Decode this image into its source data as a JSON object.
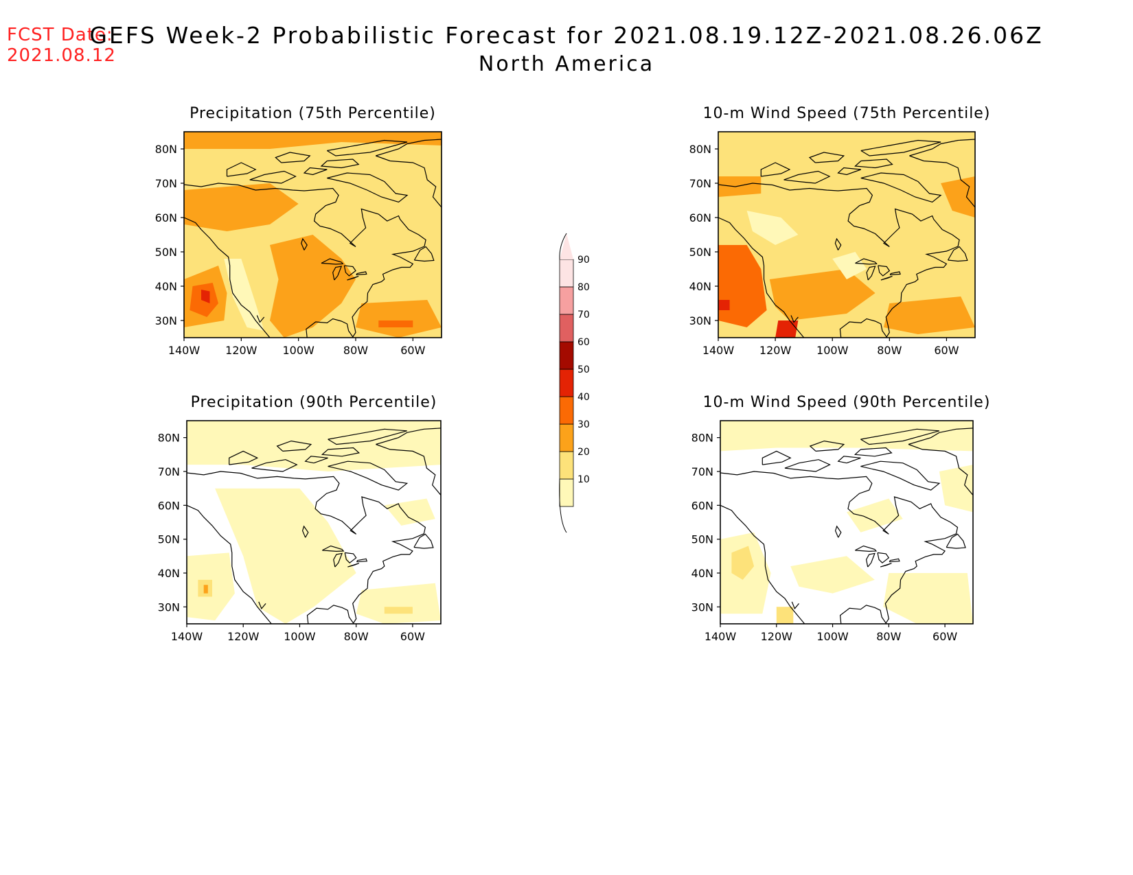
{
  "header": {
    "fcst_label": "FCST Date:",
    "fcst_date": "2021.08.12",
    "title": "GEFS Week-2 Probabilistic Forecast for 2021.08.19.12Z-2021.08.26.06Z",
    "subtitle": "North America"
  },
  "panels": [
    {
      "id": "precip75",
      "title": "Precipitation (75th Percentile)"
    },
    {
      "id": "wind75",
      "title": "10-m Wind Speed (75th Percentile)"
    },
    {
      "id": "precip90",
      "title": "Precipitation (90th Percentile)"
    },
    {
      "id": "wind90",
      "title": "10-m Wind Speed (90th Percentile)"
    }
  ],
  "axes": {
    "lat_ticks": [
      "80N",
      "70N",
      "60N",
      "50N",
      "40N",
      "30N"
    ],
    "lon_ticks": [
      "140W",
      "120W",
      "100W",
      "80W",
      "60W"
    ]
  },
  "colorbar": {
    "levels": [
      "10",
      "20",
      "30",
      "40",
      "50",
      "60",
      "70",
      "80",
      "90"
    ],
    "colors": [
      "#fff8b8",
      "#fde27a",
      "#fca21a",
      "#fb6a04",
      "#e42304",
      "#a40a00",
      "#e06060",
      "#f6a0a0",
      "#fde4e4"
    ]
  },
  "colors": {
    "title": "#000000",
    "fcst": "#ff2020"
  }
}
